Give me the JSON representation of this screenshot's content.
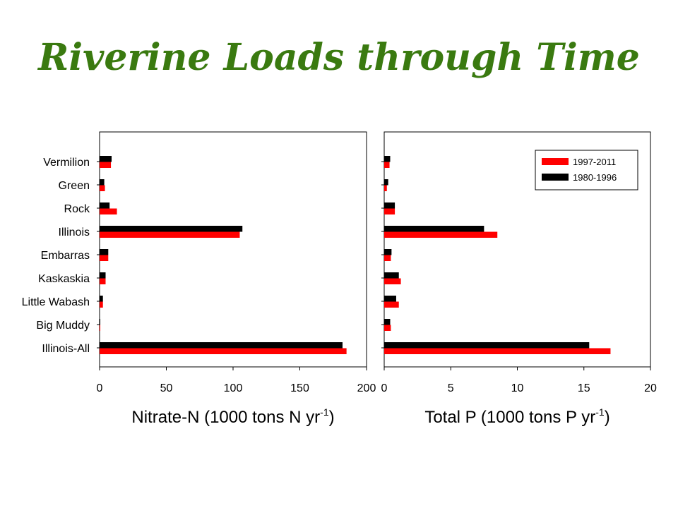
{
  "title": "Riverine Loads through Time",
  "chart_data": [
    {
      "type": "bar",
      "orientation": "horizontal",
      "categories": [
        "Vermilion",
        "Green",
        "Rock",
        "Illinois",
        "Embarras",
        "Kaskaskia",
        "Little Wabash",
        "Big Muddy",
        "Illinois-All"
      ],
      "series": [
        {
          "name": "1980-1996",
          "color": "#000000",
          "values": [
            9,
            3.5,
            7.5,
            107,
            6.5,
            4.5,
            2.5,
            0.5,
            182
          ]
        },
        {
          "name": "1997-2011",
          "color": "#ff0000",
          "values": [
            8.5,
            4,
            13,
            105,
            6.5,
            4.5,
            2.5,
            0.5,
            185
          ]
        }
      ],
      "xlabel_main": "Nitrate-N (1000 tons N yr",
      "xlabel_sup": "-1",
      "xlabel_end": ")",
      "xlim": [
        0,
        200
      ],
      "xticks": [
        "0",
        "50",
        "100",
        "150",
        "200"
      ],
      "grid": false
    },
    {
      "type": "bar",
      "orientation": "horizontal",
      "categories": [
        "Vermilion",
        "Green",
        "Rock",
        "Illinois",
        "Embarras",
        "Kaskaskia",
        "Little Wabash",
        "Big Muddy",
        "Illinois-All"
      ],
      "series": [
        {
          "name": "1980-1996",
          "color": "#000000",
          "values": [
            0.45,
            0.3,
            0.8,
            7.5,
            0.55,
            1.1,
            0.9,
            0.45,
            15.4
          ]
        },
        {
          "name": "1997-2011",
          "color": "#ff0000",
          "values": [
            0.4,
            0.2,
            0.8,
            8.5,
            0.5,
            1.25,
            1.1,
            0.5,
            17.0
          ]
        }
      ],
      "xlabel_main": "Total P (1000 tons P yr",
      "xlabel_sup": "-1",
      "xlabel_end": ")",
      "xlim": [
        0,
        20
      ],
      "xticks": [
        "0",
        "5",
        "10",
        "15",
        "20"
      ],
      "grid": false,
      "legend": {
        "placement": "top-right",
        "entries": [
          {
            "label": "1997-2011",
            "color": "#ff0000"
          },
          {
            "label": "1980-1996",
            "color": "#000000"
          }
        ]
      }
    }
  ]
}
